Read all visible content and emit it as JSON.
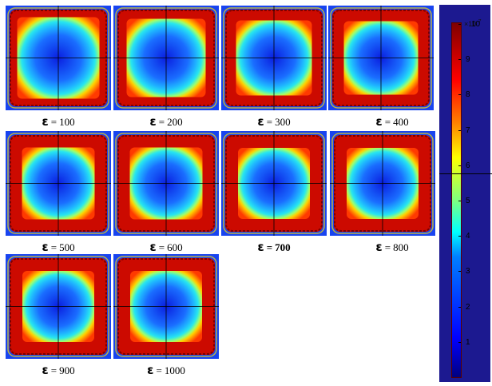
{
  "panels": [
    {
      "label": "100",
      "intensity": 0.35
    },
    {
      "label": "200",
      "intensity": 0.55
    },
    {
      "label": "300",
      "intensity": 0.75
    },
    {
      "label": "400",
      "intensity": 0.85
    },
    {
      "label": "500",
      "intensity": 0.95
    },
    {
      "label": "600",
      "intensity": 0.95
    },
    {
      "label": "700",
      "intensity": 1.0
    },
    {
      "label": "800",
      "intensity": 1.0
    },
    {
      "label": "900",
      "intensity": 1.0
    },
    {
      "label": "1000",
      "intensity": 1.0
    }
  ],
  "caption": {
    "symbol": "ε",
    "equals": "="
  },
  "colorbar": {
    "exponent_base": "×10",
    "exponent_power": "-7",
    "ticks": [
      "10",
      "9",
      "8",
      "7",
      "6",
      "5",
      "4",
      "3",
      "2",
      "1"
    ],
    "colormap": "jet"
  },
  "colors": {
    "background": "#0b2fd0",
    "frame_box": "#1c1990",
    "crosshair": "#000000"
  }
}
